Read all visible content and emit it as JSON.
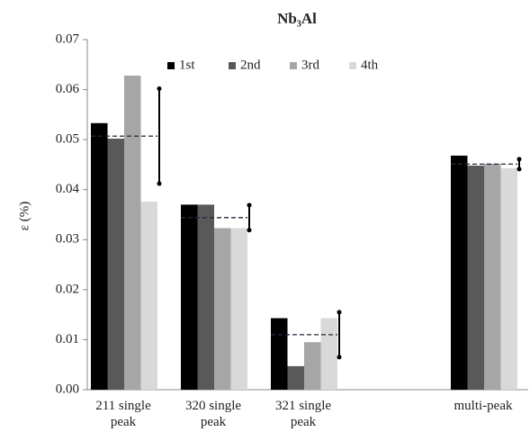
{
  "chart_data": {
    "type": "bar",
    "title": "Nb₃Al",
    "y_label": "ε (%)",
    "categories": [
      "211 single peak",
      "320 single peak",
      "321 single peak",
      null,
      "multi-peak"
    ],
    "series": [
      {
        "name": "1st",
        "color": "#000000",
        "values": [
          0.0533,
          0.037,
          0.0143,
          null,
          0.0468
        ]
      },
      {
        "name": "2nd",
        "color": "#595959",
        "values": [
          0.0502,
          0.037,
          0.0047,
          null,
          0.0448
        ]
      },
      {
        "name": "3rd",
        "color": "#a6a6a6",
        "values": [
          0.0628,
          0.0323,
          0.0095,
          null,
          0.0452
        ]
      },
      {
        "name": "4th",
        "color": "#d9d9d9",
        "values": [
          0.0376,
          0.0323,
          0.0143,
          null,
          0.0443
        ]
      }
    ],
    "average": {
      "values": [
        0.0507,
        0.0344,
        0.011,
        null,
        0.0451
      ],
      "errors": [
        0.0095,
        0.0025,
        0.0045,
        null,
        0.001
      ]
    },
    "ylim": [
      0,
      0.07
    ],
    "yticks": [
      {
        "value": 0,
        "label": "0.00"
      },
      0.01,
      0.02,
      0.03,
      0.04,
      0.05,
      0.06,
      0.07
    ],
    "grid": false,
    "legend": "top"
  }
}
